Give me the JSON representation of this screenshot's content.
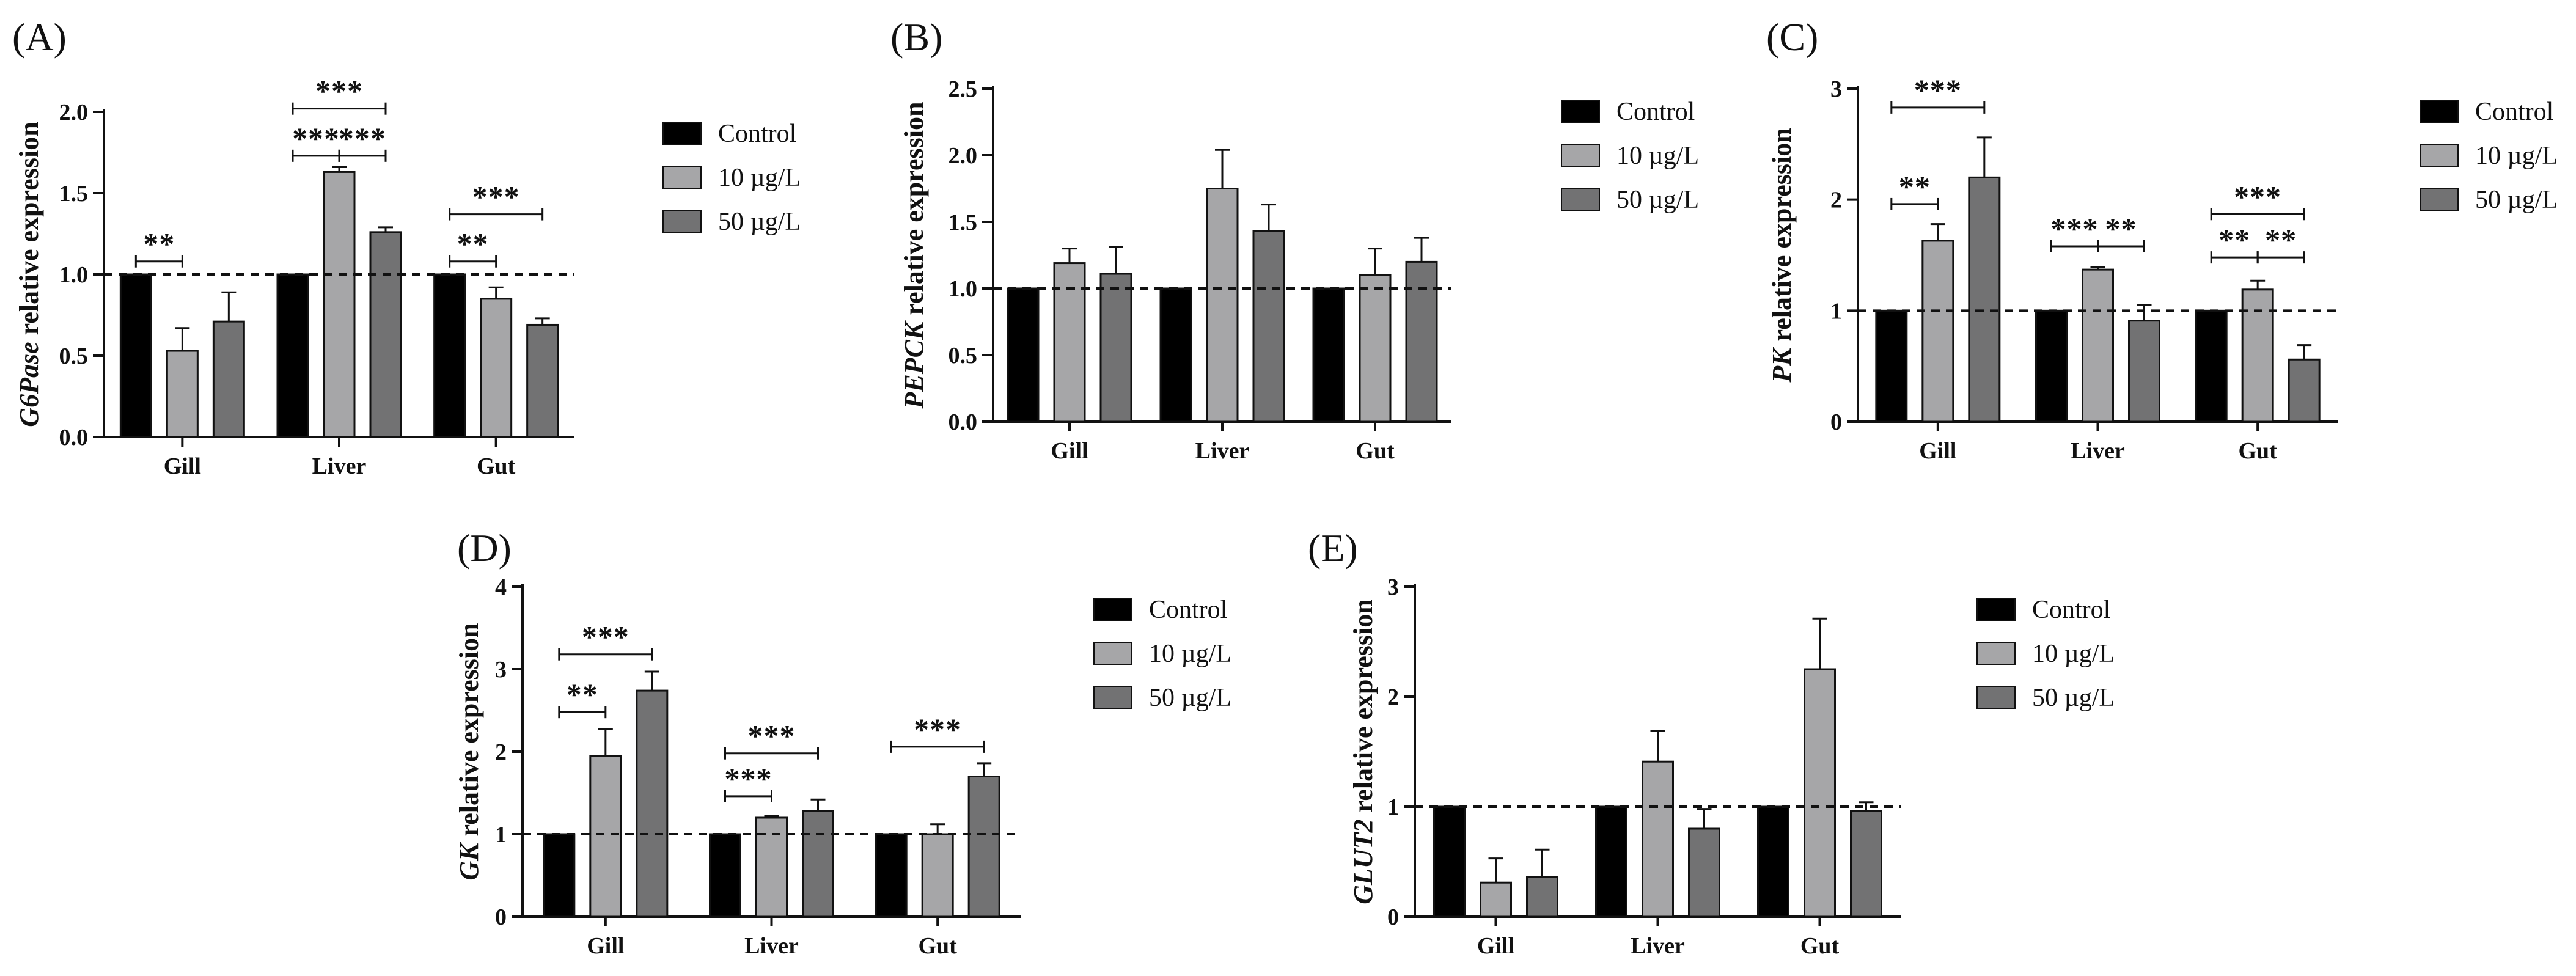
{
  "figure": {
    "colors": {
      "Control": "#000000",
      "10 µg/L": "#a6a6a8",
      "50 µg/L": "#727273",
      "ink": "#111111"
    },
    "legend": [
      "Control",
      "10 µg/L",
      "50 µg/L"
    ]
  },
  "chart_data": [
    {
      "id": "A",
      "panel_label": "(A)",
      "type": "bar",
      "title": "",
      "gene": "G6Pase",
      "ylabel_suffix": " relative expression",
      "xlabel": "",
      "categories": [
        "Gill",
        "Liver",
        "Gut"
      ],
      "ylim": [
        0,
        2.0
      ],
      "yticks": [
        0,
        0.5,
        1.0,
        1.5,
        2.0
      ],
      "ytick_labels": [
        "0.0",
        "0.5",
        "1.0",
        "1.5",
        "2.0"
      ],
      "reference_line": 1.0,
      "legend_position": "right",
      "series": [
        {
          "name": "Control",
          "values": [
            1.0,
            1.0,
            1.0
          ],
          "errors": [
            0,
            0,
            0
          ]
        },
        {
          "name": "10 µg/L",
          "values": [
            0.53,
            1.63,
            0.85
          ],
          "errors": [
            0.14,
            0.03,
            0.07
          ]
        },
        {
          "name": "50 µg/L",
          "values": [
            0.71,
            1.26,
            0.69
          ],
          "errors": [
            0.18,
            0.03,
            0.04
          ]
        }
      ],
      "significance": [
        {
          "cat": 0,
          "from": 0,
          "to": 1,
          "label": "**",
          "y": 1.08
        },
        {
          "cat": 1,
          "from": 0,
          "to": 1,
          "label": "***",
          "y": 1.73
        },
        {
          "cat": 1,
          "from": 1,
          "to": 2,
          "label": "***",
          "y": 1.73
        },
        {
          "cat": 1,
          "from": 0,
          "to": 2,
          "label": "***",
          "y": 2.02
        },
        {
          "cat": 2,
          "from": 0,
          "to": 1,
          "label": "**",
          "y": 1.08
        },
        {
          "cat": 2,
          "from": 0,
          "to": 2,
          "label": "***",
          "y": 1.37
        }
      ]
    },
    {
      "id": "B",
      "panel_label": "(B)",
      "type": "bar",
      "title": "",
      "gene": "PEPCK",
      "ylabel_suffix": " relative expression",
      "xlabel": "",
      "categories": [
        "Gill",
        "Liver",
        "Gut"
      ],
      "ylim": [
        0,
        2.5
      ],
      "yticks": [
        0,
        0.5,
        1.0,
        1.5,
        2.0,
        2.5
      ],
      "ytick_labels": [
        "0.0",
        "0.5",
        "1.0",
        "1.5",
        "2.0",
        "2.5"
      ],
      "reference_line": 1.0,
      "legend_position": "right",
      "series": [
        {
          "name": "Control",
          "values": [
            1.0,
            1.0,
            1.0
          ],
          "errors": [
            0,
            0,
            0
          ]
        },
        {
          "name": "10 µg/L",
          "values": [
            1.19,
            1.75,
            1.1
          ],
          "errors": [
            0.11,
            0.29,
            0.2
          ]
        },
        {
          "name": "50 µg/L",
          "values": [
            1.11,
            1.43,
            1.2
          ],
          "errors": [
            0.2,
            0.2,
            0.18
          ]
        }
      ],
      "significance": []
    },
    {
      "id": "C",
      "panel_label": "(C)",
      "type": "bar",
      "title": "",
      "gene": "PK",
      "ylabel_suffix": " relative expression",
      "xlabel": "",
      "categories": [
        "Gill",
        "Liver",
        "Gut"
      ],
      "ylim": [
        0,
        3
      ],
      "yticks": [
        0,
        1,
        2,
        3
      ],
      "ytick_labels": [
        "0",
        "1",
        "2",
        "3"
      ],
      "reference_line": 1.0,
      "legend_position": "right",
      "series": [
        {
          "name": "Control",
          "values": [
            1.0,
            1.0,
            1.0
          ],
          "errors": [
            0,
            0,
            0
          ]
        },
        {
          "name": "10 µg/L",
          "values": [
            1.63,
            1.37,
            1.19
          ],
          "errors": [
            0.15,
            0.02,
            0.08
          ]
        },
        {
          "name": "50 µg/L",
          "values": [
            2.2,
            0.91,
            0.56
          ],
          "errors": [
            0.36,
            0.14,
            0.13
          ]
        }
      ],
      "significance": [
        {
          "cat": 0,
          "from": 0,
          "to": 1,
          "label": "**",
          "y": 1.96
        },
        {
          "cat": 0,
          "from": 0,
          "to": 2,
          "label": "***",
          "y": 2.83
        },
        {
          "cat": 1,
          "from": 0,
          "to": 1,
          "label": "***",
          "y": 1.58
        },
        {
          "cat": 1,
          "from": 1,
          "to": 2,
          "label": "**",
          "y": 1.58
        },
        {
          "cat": 2,
          "from": 0,
          "to": 1,
          "label": "**",
          "y": 1.48
        },
        {
          "cat": 2,
          "from": 1,
          "to": 2,
          "label": "**",
          "y": 1.48
        },
        {
          "cat": 2,
          "from": 0,
          "to": 2,
          "label": "***",
          "y": 1.87
        }
      ]
    },
    {
      "id": "D",
      "panel_label": "(D)",
      "type": "bar",
      "title": "",
      "gene": "GK",
      "ylabel_suffix": " relative expression",
      "xlabel": "",
      "categories": [
        "Gill",
        "Liver",
        "Gut"
      ],
      "ylim": [
        0,
        4
      ],
      "yticks": [
        0,
        1,
        2,
        3,
        4
      ],
      "ytick_labels": [
        "0",
        "1",
        "2",
        "3",
        "4"
      ],
      "reference_line": 1.0,
      "legend_position": "right",
      "series": [
        {
          "name": "Control",
          "values": [
            1.0,
            1.0,
            1.0
          ],
          "errors": [
            0,
            0,
            0
          ]
        },
        {
          "name": "10 µg/L",
          "values": [
            1.95,
            1.2,
            1.0
          ],
          "errors": [
            0.32,
            0.02,
            0.12
          ]
        },
        {
          "name": "50 µg/L",
          "values": [
            2.74,
            1.28,
            1.7
          ],
          "errors": [
            0.23,
            0.14,
            0.16
          ]
        }
      ],
      "significance": [
        {
          "cat": 0,
          "from": 0,
          "to": 1,
          "label": "**",
          "y": 2.48
        },
        {
          "cat": 0,
          "from": 0,
          "to": 2,
          "label": "***",
          "y": 3.18
        },
        {
          "cat": 1,
          "from": 0,
          "to": 1,
          "label": "***",
          "y": 1.46
        },
        {
          "cat": 1,
          "from": 0,
          "to": 2,
          "label": "***",
          "y": 1.98
        },
        {
          "cat": 2,
          "from": 0,
          "to": 2,
          "label": "***",
          "y": 2.06
        }
      ]
    },
    {
      "id": "E",
      "panel_label": "(E)",
      "type": "bar",
      "title": "",
      "gene": "GLUT2",
      "ylabel_suffix": " relative expression",
      "xlabel": "",
      "categories": [
        "Gill",
        "Liver",
        "Gut"
      ],
      "ylim": [
        0,
        3
      ],
      "yticks": [
        0,
        1,
        2,
        3
      ],
      "ytick_labels": [
        "0",
        "1",
        "2",
        "3"
      ],
      "reference_line": 1.0,
      "legend_position": "right",
      "series": [
        {
          "name": "Control",
          "values": [
            1.0,
            1.0,
            1.0
          ],
          "errors": [
            0,
            0,
            0
          ]
        },
        {
          "name": "10 µg/L",
          "values": [
            0.31,
            1.41,
            2.25
          ],
          "errors": [
            0.22,
            0.28,
            0.46
          ]
        },
        {
          "name": "50 µg/L",
          "values": [
            0.36,
            0.8,
            0.96
          ],
          "errors": [
            0.25,
            0.18,
            0.08
          ]
        }
      ],
      "significance": []
    }
  ]
}
